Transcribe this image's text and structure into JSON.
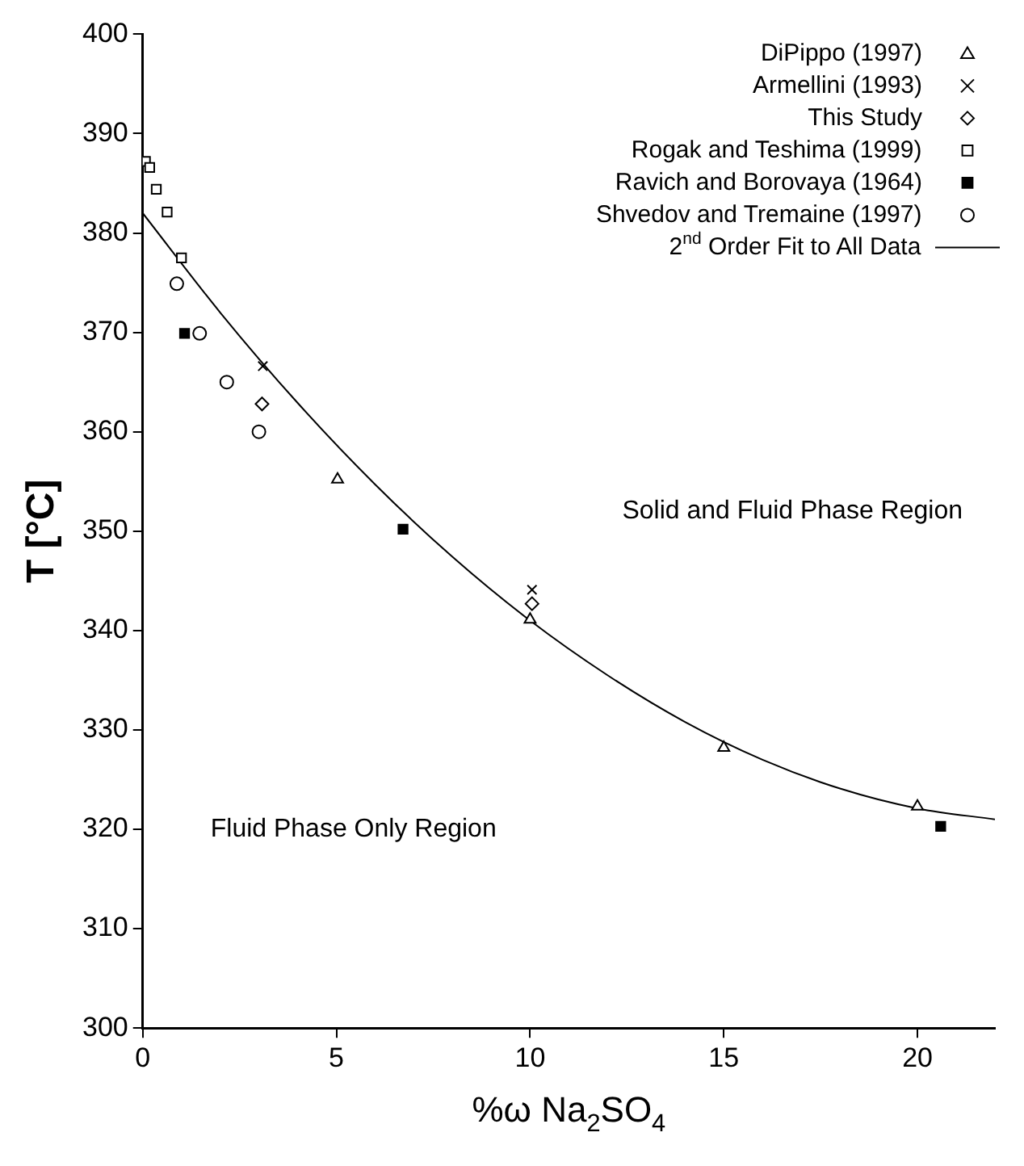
{
  "chart_data": {
    "type": "scatter",
    "xlabel": "%ω Na$_{2}$SO$_{4}$",
    "ylabel": "T [°C]",
    "xlim": [
      0,
      22
    ],
    "xticks": [
      0,
      5,
      10,
      15,
      20
    ],
    "ylim": [
      300,
      400
    ],
    "yticks": [
      300,
      310,
      320,
      330,
      340,
      350,
      360,
      370,
      380,
      390,
      400
    ],
    "grid": false,
    "legend": "top right",
    "annotations": [
      "Solid and Fluid Phase Region",
      "Fluid Phase Only Region"
    ],
    "series": [
      {
        "name": "DiPippo (1997)",
        "marker": "triangle",
        "color": "#000000",
        "x": [
          5.03,
          10,
          15,
          20
        ],
        "values": [
          355.2,
          341.1,
          328.2,
          322.3
        ]
      },
      {
        "name": "Armellini (1993)",
        "marker": "cross",
        "color": "#000000",
        "x": [
          3.1,
          10.05
        ],
        "values": [
          366.6,
          344.1
        ]
      },
      {
        "name": "This Study",
        "marker": "diamond",
        "color": "#000000",
        "x": [
          3.08,
          10.05
        ],
        "values": [
          362.8,
          342.7
        ]
      },
      {
        "name": "Rogak and Teshima (1999)",
        "marker": "square",
        "color": "#000000",
        "x": [
          0.07,
          0.18,
          0.35,
          0.63,
          1.0
        ],
        "values": [
          387.2,
          386.6,
          384.4,
          382.1,
          377.5
        ]
      },
      {
        "name": "Ravich and Borovaya (1964)",
        "marker": "square",
        "color": "#000000",
        "x": [
          1.08,
          6.72,
          20.6
        ],
        "values": [
          369.9,
          350.2,
          320.3
        ]
      },
      {
        "name": "Shvedov and Tremaine (1997)",
        "marker": "circle",
        "color": "#000000",
        "x": [
          0.88,
          1.47,
          2.17,
          3.0
        ],
        "values": [
          374.9,
          369.9,
          365,
          360
        ]
      },
      {
        "name": "2$^{nd}$ Order Fit to All Data",
        "type": "line",
        "marker": "none",
        "line_style": "solid",
        "color": "#000000",
        "x": [
          0,
          2,
          4,
          6,
          8,
          10,
          12,
          14,
          16,
          18,
          20,
          22
        ],
        "values": [
          382,
          372,
          362.9,
          354.7,
          347.4,
          341,
          335.5,
          330.8,
          327,
          324.1,
          322.1,
          321
        ]
      }
    ]
  }
}
